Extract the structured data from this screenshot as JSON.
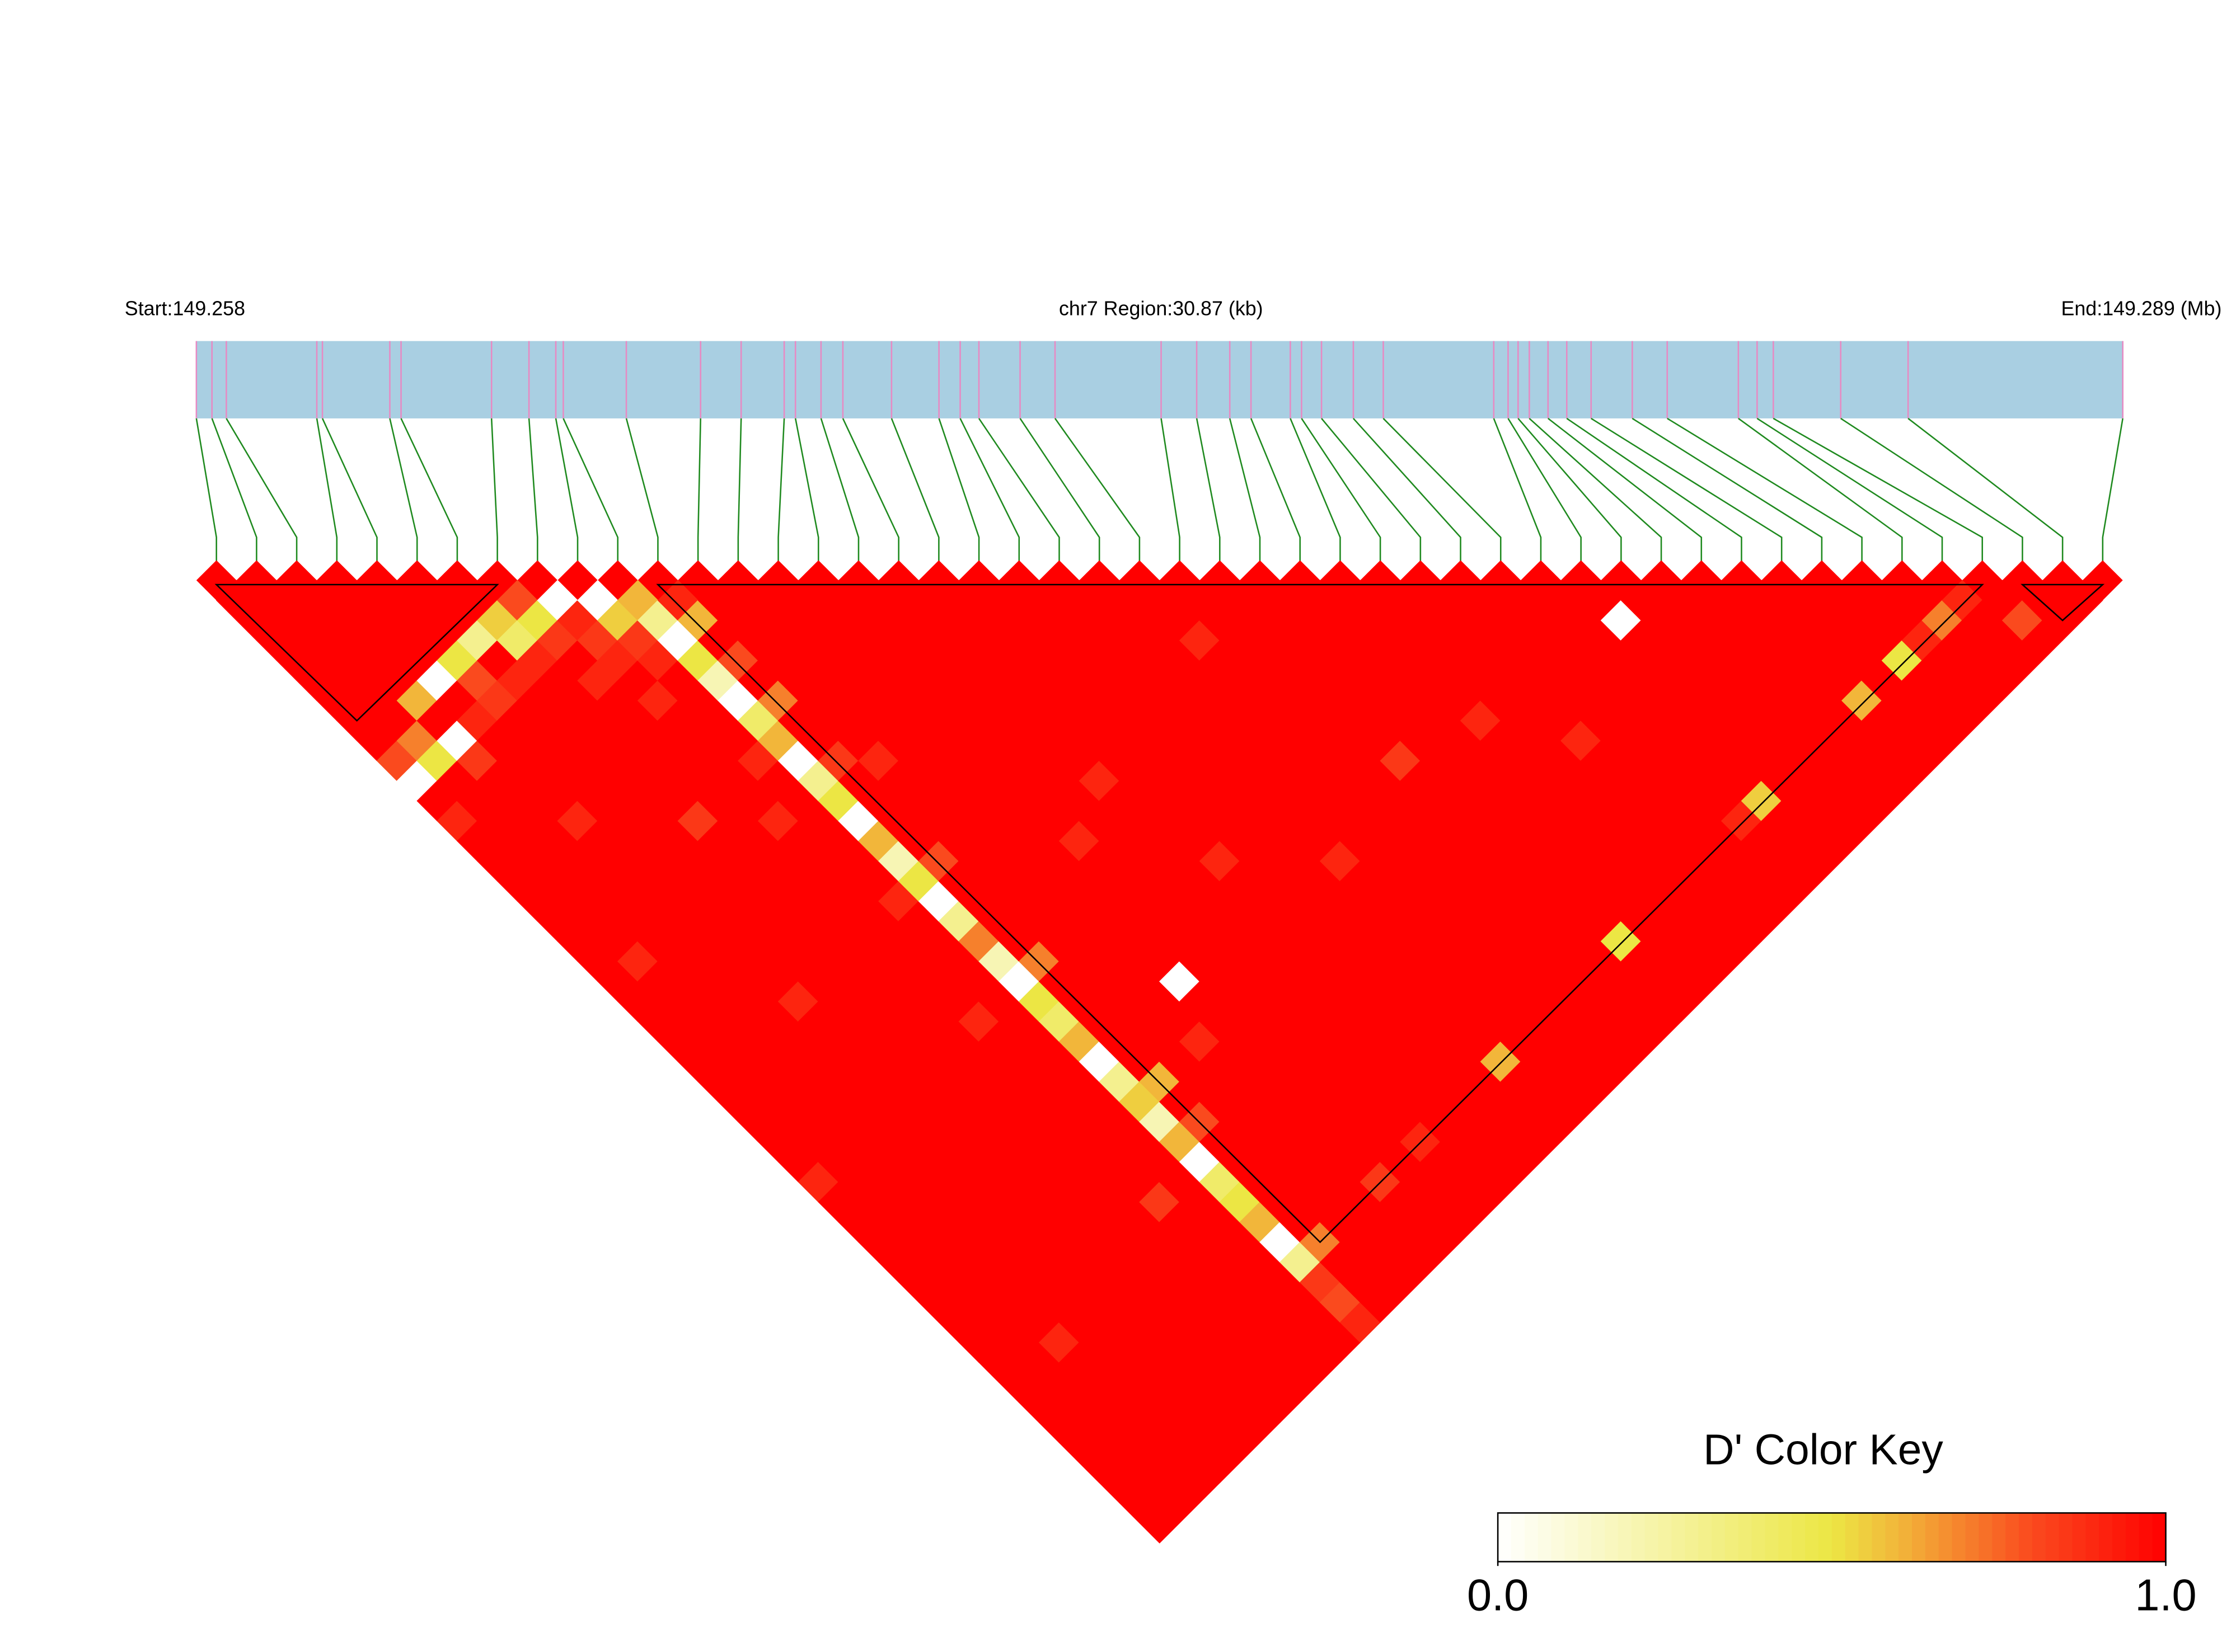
{
  "chart_data": {
    "type": "ld_heatmap",
    "start_label": "Start:149.258",
    "region_label": "chr7 Region:30.87 (kb)",
    "end_label": "End:149.289 (Mb)",
    "xlim": [
      0,
      30.87
    ],
    "positions": [
      0,
      0.25,
      0.48,
      1.93,
      2.02,
      3.1,
      3.28,
      4.73,
      5.33,
      5.76,
      5.88,
      6.89,
      8.08,
      8.73,
      9.42,
      9.6,
      10.01,
      10.36,
      11.14,
      11.9,
      12.24,
      12.54,
      13.2,
      13.76,
      15.46,
      16.03,
      16.56,
      16.9,
      17.53,
      17.71,
      18.03,
      18.54,
      19.02,
      20.79,
      21.02,
      21.18,
      21.36,
      21.66,
      21.96,
      22.35,
      23.01,
      23.57,
      24.71,
      25.01,
      25.27,
      26.35,
      27.43,
      30.87
    ],
    "dprime": [
      [
        1,
        1,
        1,
        1,
        1,
        1,
        1,
        1,
        0.8,
        0,
        1,
        0.9,
        1,
        1,
        1,
        1,
        1,
        1,
        1,
        1,
        1,
        1,
        1,
        1,
        1,
        1,
        1,
        1,
        1,
        0.9,
        1,
        1,
        1,
        1,
        1,
        1,
        1,
        1,
        1,
        1,
        1,
        1,
        1,
        1,
        1,
        1,
        1
      ],
      [
        1,
        1,
        1,
        1,
        1,
        1,
        1,
        0.7,
        0.5,
        1,
        1,
        1,
        1,
        1,
        1,
        1,
        1,
        1,
        0.9,
        1,
        1,
        1,
        1,
        1,
        1,
        1,
        1,
        1,
        1,
        1,
        1,
        1,
        1,
        1,
        1,
        1,
        1,
        1,
        1,
        1,
        1,
        1,
        1,
        1,
        1,
        1
      ],
      [
        1,
        1,
        1,
        1,
        1,
        0.6,
        1,
        0,
        0.85,
        1,
        1,
        1,
        1,
        1,
        1,
        1,
        1,
        1,
        1,
        1,
        1,
        1,
        1,
        1,
        1,
        1,
        1,
        1,
        1,
        1,
        1,
        1,
        1,
        1,
        1,
        1,
        1,
        0.9,
        1,
        1,
        1,
        1,
        1,
        1,
        1
      ],
      [
        1,
        1,
        1,
        1,
        0,
        1,
        0.9,
        1,
        1,
        1,
        1,
        0.9,
        1,
        1,
        1,
        1,
        1,
        1,
        1,
        1,
        1,
        1,
        1,
        1,
        1,
        1,
        1,
        1,
        1,
        1,
        1,
        1,
        1,
        1,
        1,
        1,
        1,
        1,
        1,
        1,
        1,
        1,
        1,
        1
      ],
      [
        1,
        1,
        1,
        0.5,
        0.8,
        0.85,
        1,
        1,
        1,
        1,
        1,
        1,
        1,
        1,
        1,
        1,
        1,
        1,
        1,
        1,
        0.9,
        1,
        1,
        1,
        1,
        1,
        1,
        1,
        1,
        1,
        1,
        1,
        1,
        1,
        1,
        1,
        1,
        1,
        1,
        1,
        1,
        1,
        1
      ],
      [
        1,
        1,
        0.3,
        1,
        0.9,
        1,
        1,
        1,
        1,
        1,
        1,
        1,
        1,
        1,
        1,
        1,
        1,
        1,
        1,
        1,
        1,
        1,
        1,
        1,
        1,
        1,
        1,
        1,
        1,
        1,
        1,
        1,
        1,
        1,
        1,
        1,
        1,
        1,
        1,
        1,
        1,
        1
      ],
      [
        1,
        0.55,
        0.4,
        0.9,
        1,
        1,
        1,
        1,
        1,
        1,
        1,
        0.85,
        1,
        1,
        1,
        1,
        1,
        1,
        1,
        1,
        1,
        1,
        1,
        1,
        1,
        1,
        1,
        1,
        1,
        1,
        1,
        1,
        1,
        1,
        1,
        1,
        1,
        1,
        1,
        1,
        1
      ],
      [
        0.8,
        0.5,
        0.85,
        1,
        0.9,
        1,
        1,
        1,
        1,
        1,
        1,
        1,
        1,
        1,
        1,
        1,
        1,
        1,
        1,
        1,
        1,
        1,
        1,
        1,
        1,
        1,
        1,
        1,
        1,
        1,
        1,
        1,
        1,
        1,
        1,
        1,
        1,
        1,
        1,
        1
      ],
      [
        0,
        0.9,
        0.85,
        0.9,
        1,
        0.9,
        1,
        1,
        1,
        1,
        1,
        0.9,
        1,
        1,
        1,
        1,
        1,
        1,
        1,
        1,
        1,
        0.9,
        1,
        1,
        1,
        1,
        1,
        1,
        1,
        1,
        0.85,
        1,
        1,
        1,
        1,
        1,
        1,
        1,
        1
      ],
      [
        0,
        0.55,
        0.85,
        0.9,
        1,
        1,
        1,
        1,
        0.9,
        1,
        1,
        1,
        1,
        1,
        1,
        0.9,
        1,
        1,
        1,
        1,
        1,
        1,
        1,
        1,
        1,
        1,
        1,
        1,
        1,
        1,
        1,
        1,
        1,
        1,
        1,
        1,
        1,
        1
      ],
      [
        0.6,
        0.3,
        0,
        0.5,
        0.2,
        0,
        0.4,
        0.6,
        0,
        0.3,
        0.5,
        0,
        0.6,
        0.2,
        0.5,
        0,
        0.3,
        0.7,
        0.2,
        0,
        0.5,
        0.4,
        0.6,
        0,
        0.3,
        0.55,
        0.2,
        0.6,
        0,
        0.4,
        0.5,
        0.6,
        0,
        0.3,
        0.85,
        0.8,
        0.9
      ],
      [
        0.9,
        0.6,
        1,
        0.8,
        1,
        0.7,
        1,
        1,
        0.85,
        1,
        1,
        1,
        1,
        0.8,
        1,
        1,
        1,
        1,
        0.7,
        1,
        1,
        1,
        1,
        1,
        0.6,
        1,
        0.8,
        1,
        1,
        1,
        1,
        1,
        0.7,
        1,
        1,
        1
      ],
      [
        1,
        1,
        1,
        1,
        1,
        1,
        1,
        1,
        0.9,
        1,
        1,
        1,
        1,
        1,
        1,
        1,
        1,
        1,
        1,
        1,
        1,
        1,
        1,
        1,
        1,
        1,
        1,
        1,
        1,
        1,
        1,
        1,
        1,
        1,
        1
      ],
      [
        1,
        1,
        1,
        1,
        1,
        1,
        1,
        1,
        1,
        1,
        1,
        1,
        1,
        1,
        1,
        1,
        1,
        1,
        1,
        1,
        1,
        1,
        0.9,
        1,
        1,
        1,
        1,
        1,
        1,
        1,
        1,
        1,
        1,
        1
      ],
      [
        1,
        1,
        1,
        1,
        1,
        1,
        1,
        1,
        1,
        1,
        1,
        1,
        1,
        1,
        1,
        1,
        1,
        1,
        1,
        0,
        1,
        1,
        1,
        1,
        1,
        1,
        1,
        1,
        1,
        0.85,
        1,
        1,
        1
      ],
      [
        1,
        1,
        1,
        1,
        1,
        1,
        1,
        1,
        1,
        1,
        1,
        1,
        0.9,
        1,
        1,
        1,
        1,
        1,
        1,
        1,
        1,
        1,
        1,
        1,
        1,
        1,
        1,
        1,
        1,
        1,
        1,
        1
      ],
      [
        1,
        1,
        1,
        1,
        1,
        1,
        1,
        1,
        1,
        1,
        1,
        1,
        1,
        1,
        1,
        1,
        1,
        1,
        1,
        1,
        1,
        1,
        1,
        1,
        1,
        1,
        1,
        0.9,
        1,
        1,
        1
      ],
      [
        1,
        1,
        1,
        1,
        1,
        1,
        1,
        1,
        1,
        0.9,
        1,
        1,
        1,
        1,
        1,
        1,
        1,
        1,
        1,
        1,
        1,
        1,
        1,
        1,
        1,
        1,
        1,
        1,
        1,
        1
      ],
      [
        1,
        1,
        1,
        1,
        1,
        1,
        1,
        1,
        1,
        1,
        1,
        1,
        1,
        0.9,
        1,
        1,
        1,
        1,
        1,
        1,
        1,
        1,
        1,
        1,
        1,
        1,
        1,
        1,
        1
      ],
      [
        1,
        1,
        1,
        1,
        1,
        1,
        1,
        1,
        1,
        1,
        1,
        1,
        1,
        1,
        1,
        1,
        1,
        1,
        1,
        1,
        1,
        1,
        1,
        1,
        1,
        1,
        1,
        1
      ],
      [
        1,
        1,
        1,
        1,
        1,
        1,
        1,
        1,
        1,
        1,
        1,
        1,
        1,
        1,
        1,
        1,
        1,
        1,
        1,
        1,
        1,
        1,
        1,
        0.6,
        1,
        1,
        1
      ],
      [
        1,
        1,
        1,
        1,
        1,
        1,
        1,
        1,
        1,
        1,
        1,
        1,
        1,
        0.9,
        1,
        1,
        1,
        1,
        1,
        1,
        1,
        1,
        1,
        1,
        1,
        1
      ],
      [
        1,
        1,
        1,
        1,
        1,
        1,
        1,
        1,
        1,
        1,
        1,
        1,
        1,
        1,
        1,
        1,
        1,
        1,
        1,
        1,
        1,
        1,
        1,
        1,
        1
      ],
      [
        1,
        1,
        0.9,
        1,
        1,
        1,
        1,
        1,
        1,
        1,
        1,
        1,
        1,
        1,
        1,
        1,
        1,
        1,
        1,
        1,
        1,
        1,
        1,
        1
      ],
      [
        1,
        1,
        1,
        1,
        1,
        1,
        1,
        1,
        1,
        1,
        1,
        1,
        1,
        1,
        1,
        1,
        1,
        1,
        1,
        1,
        1,
        1,
        1
      ],
      [
        1,
        1,
        1,
        1,
        1,
        1,
        1,
        1,
        0.85,
        1,
        1,
        1,
        1,
        1,
        1,
        1,
        1,
        1,
        1,
        1,
        1,
        1
      ],
      [
        1,
        1,
        1,
        1,
        1,
        1,
        1,
        1,
        1,
        1,
        1,
        1,
        1,
        1,
        1,
        1,
        1,
        0.5,
        1,
        1,
        1
      ],
      [
        1,
        1,
        1,
        1,
        1,
        1,
        1,
        1,
        1,
        1,
        1,
        1,
        1,
        1,
        1,
        1,
        1,
        1,
        1,
        1
      ],
      [
        1,
        1,
        1,
        1,
        1,
        1,
        0.9,
        1,
        1,
        1,
        1,
        1,
        1,
        1,
        1,
        1,
        1,
        1,
        1
      ],
      [
        1,
        1,
        1,
        1,
        1,
        1,
        1,
        1,
        1,
        1,
        1,
        1,
        1,
        1,
        1,
        1,
        1,
        1
      ],
      [
        1,
        1,
        1,
        1,
        1,
        1,
        1,
        0.9,
        1,
        1,
        1,
        1,
        1,
        1,
        1,
        1,
        1
      ],
      [
        1,
        1,
        1,
        1,
        1,
        1,
        1,
        1,
        1,
        1,
        1,
        1,
        1,
        1,
        1,
        1
      ],
      [
        1,
        1,
        1,
        1,
        1,
        1,
        1,
        1,
        1,
        1,
        1,
        0.9,
        1,
        1,
        1
      ],
      [
        1,
        1,
        1,
        1,
        1,
        1,
        1,
        1,
        1,
        1,
        0.55,
        1,
        1,
        1
      ],
      [
        1,
        0,
        1,
        1,
        1,
        1,
        1,
        1,
        1,
        1,
        1,
        1,
        1
      ],
      [
        1,
        1,
        1,
        1,
        1,
        1,
        1,
        1,
        1,
        1,
        1,
        1
      ],
      [
        1,
        1,
        1,
        1,
        1,
        1,
        1,
        1,
        1,
        1,
        1
      ],
      [
        1,
        1,
        1,
        1,
        1,
        1,
        1,
        1,
        1,
        1
      ],
      [
        1,
        1,
        1,
        1,
        1,
        0.6,
        1,
        1,
        1
      ],
      [
        1,
        1,
        1,
        1,
        1,
        1,
        1,
        1
      ],
      [
        1,
        1,
        1,
        0.5,
        1,
        1,
        1
      ],
      [
        1,
        1,
        0.9,
        1,
        1,
        1
      ],
      [
        1,
        0.7,
        1,
        1,
        1
      ],
      [
        0.9,
        1,
        1,
        1
      ],
      [
        1,
        0.8,
        1
      ],
      [
        1,
        1
      ],
      [
        1
      ]
    ],
    "blocks": [
      [
        0,
        7
      ],
      [
        11,
        44
      ],
      [
        45,
        47
      ]
    ],
    "track_color": "#a9cfe2",
    "snp_line_color": "#e78ac3",
    "connector_color": "#1f8a1f",
    "outline_color": "#000000",
    "color_key": {
      "title": "D' Color Key",
      "clim": [
        0,
        1
      ],
      "ticks": [
        {
          "value": 0,
          "label": "0.0"
        },
        {
          "value": 1,
          "label": "1.0"
        }
      ],
      "stops": [
        {
          "value": 0,
          "color": "#ffffff"
        },
        {
          "value": 0.5,
          "color": "#ece644"
        },
        {
          "value": 0.6,
          "color": "#f2b63a"
        },
        {
          "value": 0.8,
          "color": "#fa4a1e"
        },
        {
          "value": 1,
          "color": "#ff0000"
        }
      ]
    }
  }
}
